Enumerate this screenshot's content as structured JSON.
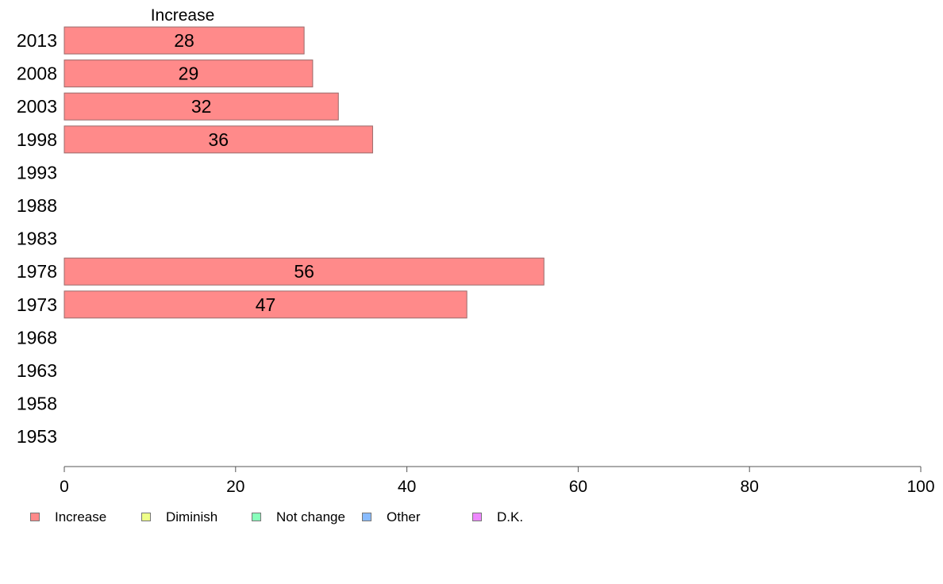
{
  "chart_data": {
    "type": "bar",
    "orientation": "horizontal",
    "title": "Increase",
    "categories": [
      "2013",
      "2008",
      "2003",
      "1998",
      "1993",
      "1988",
      "1983",
      "1978",
      "1973",
      "1968",
      "1963",
      "1958",
      "1953"
    ],
    "series": [
      {
        "name": "Increase",
        "color": "#ff8a8a",
        "values": [
          28,
          29,
          32,
          36,
          null,
          null,
          null,
          56,
          47,
          null,
          null,
          null,
          null
        ]
      }
    ],
    "xlim": [
      0,
      100
    ],
    "xticks": [
      0,
      20,
      40,
      60,
      80,
      100
    ],
    "grid": false,
    "legend": {
      "placement": "bottom",
      "entries": [
        {
          "label": "Increase",
          "color": "#ff8a8a"
        },
        {
          "label": "Diminish",
          "color": "#eeff88"
        },
        {
          "label": "Not change",
          "color": "#88ffbb"
        },
        {
          "label": "Other",
          "color": "#88bbff"
        },
        {
          "label": "D.K.",
          "color": "#ee88ff"
        }
      ]
    }
  }
}
